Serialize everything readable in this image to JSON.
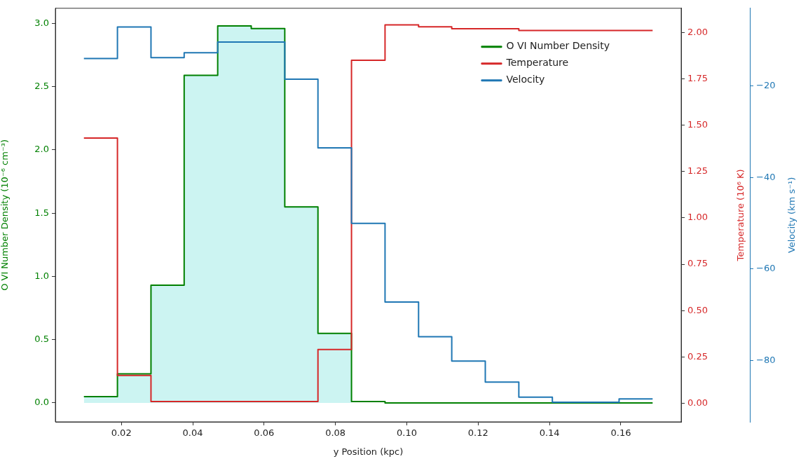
{
  "chart_data": {
    "type": "step",
    "xlabel": "y Position (kpc)",
    "ylabel": "O VI Number Density (10⁻⁶ cm⁻³)",
    "y2label": "Temperature (10⁶ K)",
    "y3label": "Velocity (km s⁻¹)",
    "x": [
      0.0095,
      0.0189,
      0.0283,
      0.0376,
      0.047,
      0.0564,
      0.0658,
      0.0751,
      0.0845,
      0.0939,
      0.1033,
      0.1126,
      0.122,
      0.1314,
      0.1408,
      0.1501,
      0.1595,
      0.1689
    ],
    "series": [
      {
        "type": "area",
        "color": "#ccf4f2",
        "values": [
          0.05,
          0.23,
          0.93,
          2.59,
          2.98,
          2.96,
          1.55,
          0.55,
          0.01,
          null,
          null,
          null,
          null,
          null,
          null,
          null,
          null,
          null
        ]
      },
      {
        "name": "O VI Number Density",
        "color": "#008000",
        "values": [
          0.05,
          0.23,
          0.93,
          2.59,
          2.98,
          2.96,
          1.55,
          0.55,
          0.01,
          0.0,
          0.0,
          0.0,
          0.0,
          0.0,
          0.0,
          0.0,
          0.0,
          0.0
        ]
      },
      {
        "name": "Temperature",
        "axis": "y2",
        "color": "#d62728",
        "values": [
          1.43,
          0.15,
          0.01,
          0.01,
          0.01,
          0.01,
          0.01,
          0.29,
          1.85,
          2.04,
          2.03,
          2.02,
          2.02,
          2.01,
          2.01,
          2.01,
          2.01,
          2.01
        ]
      },
      {
        "name": "Velocity",
        "axis": "y3",
        "color": "#1f77b4",
        "values": [
          -14.0,
          -7.1,
          -13.8,
          -12.7,
          -10.4,
          -10.4,
          -18.5,
          -33.5,
          -50.0,
          -67.2,
          -74.8,
          -80.1,
          -84.7,
          -88.0,
          -89.1,
          -89.1,
          -88.4,
          -88.4
        ]
      }
    ],
    "xlim": [
      0.0015,
      0.1769
    ],
    "xticks": [
      0.02,
      0.04,
      0.06,
      0.08,
      {
        "value": 0.1,
        "label": "0.10"
      },
      0.12,
      0.14,
      0.16
    ],
    "ylim": [
      -0.15,
      3.12
    ],
    "yticks": [
      {
        "value": 0,
        "label": "0.0"
      },
      0.5,
      {
        "value": 1,
        "label": "1.0"
      },
      1.5,
      {
        "value": 2,
        "label": "2.0"
      },
      2.5,
      {
        "value": 3,
        "label": "3.0"
      }
    ],
    "y2lim": [
      -0.1,
      2.13
    ],
    "y2ticks": [
      {
        "value": 0,
        "label": "0.00"
      },
      0.25,
      {
        "value": 0.5,
        "label": "0.50"
      },
      0.75,
      {
        "value": 1,
        "label": "1.00"
      },
      1.25,
      {
        "value": 1.5,
        "label": "1.50"
      },
      1.75,
      {
        "value": 2,
        "label": "2.00"
      }
    ],
    "y3lim": [
      -93.4,
      -3.0
    ],
    "y3ticks": [
      {
        "value": -20,
        "label": "−20"
      },
      {
        "value": -40,
        "label": "−40"
      },
      {
        "value": -60,
        "label": "−60"
      },
      {
        "value": -80,
        "label": "−80"
      }
    ],
    "grid": false,
    "legend": "top right"
  }
}
